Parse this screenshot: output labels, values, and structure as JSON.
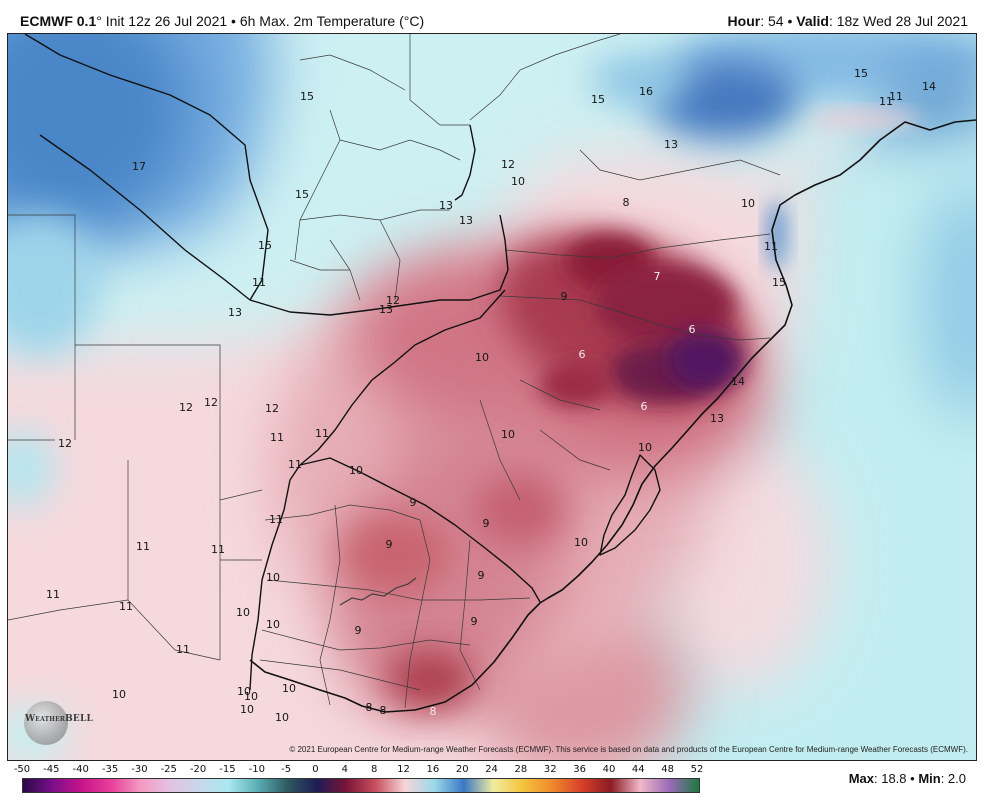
{
  "header": {
    "title_bold": "ECMWF 0.1",
    "title_rest": "° Init 12z 26 Jul 2021 • 6h Max. 2m Temperature (°C)",
    "hour_label": "Hour",
    "hour_value": ": 54 • ",
    "valid_label": "Valid",
    "valid_value": ": 18z Wed 28 Jul 2021"
  },
  "map": {
    "labels": [
      "15",
      "15",
      "16",
      "15",
      "14",
      "11",
      "11",
      "17",
      "13",
      "12",
      "10",
      "8",
      "10",
      "15",
      "13",
      "13",
      "15",
      "11",
      "7",
      "11",
      "15",
      "13",
      "9",
      "12",
      "13",
      "6",
      "10",
      "6",
      "14",
      "12",
      "12",
      "12",
      "6",
      "13",
      "11",
      "11",
      "10",
      "12",
      "10",
      "11",
      "10",
      "9",
      "9",
      "11",
      "9",
      "10",
      "11",
      "11",
      "9",
      "10",
      "11",
      "11",
      "10",
      "10",
      "9",
      "9",
      "11",
      "10",
      "10",
      "10",
      "10",
      "10",
      "8",
      "8",
      "8",
      "10"
    ]
  },
  "copyright": "© 2021 European Centre for Medium-range Weather Forecasts (ECMWF). This service is based on data and products of the European Centre for Medium-range Weather Forecasts (ECMWF).",
  "logo": {
    "text": "WeatherBELL"
  },
  "colorbar": {
    "labels": [
      "-50",
      "-45",
      "-40",
      "-35",
      "-30",
      "-25",
      "-20",
      "-15",
      "-10",
      "-5",
      "0",
      "4",
      "8",
      "12",
      "16",
      "20",
      "24",
      "28",
      "32",
      "36",
      "40",
      "44",
      "48",
      "52"
    ],
    "colors": [
      "#2a0a48",
      "#7a0f8a",
      "#c8148a",
      "#e8409c",
      "#f39ac0",
      "#e2c2e2",
      "#c8d8ec",
      "#a8e8ee",
      "#5aacb4",
      "#2e5a60",
      "#1e1c54",
      "#7a1438",
      "#c8505e",
      "#f6d6d8",
      "#9ad8ea",
      "#3a78c4",
      "#f2eca0",
      "#f4c43c",
      "#ef8a2c",
      "#d8402a",
      "#8a1c24",
      "#f2b8c8",
      "#9a6ab8",
      "#1c7a40"
    ]
  },
  "stats": {
    "max_label": "Max",
    "max_value": ": 18.8 • ",
    "min_label": "Min",
    "min_value": ": 2.0"
  }
}
